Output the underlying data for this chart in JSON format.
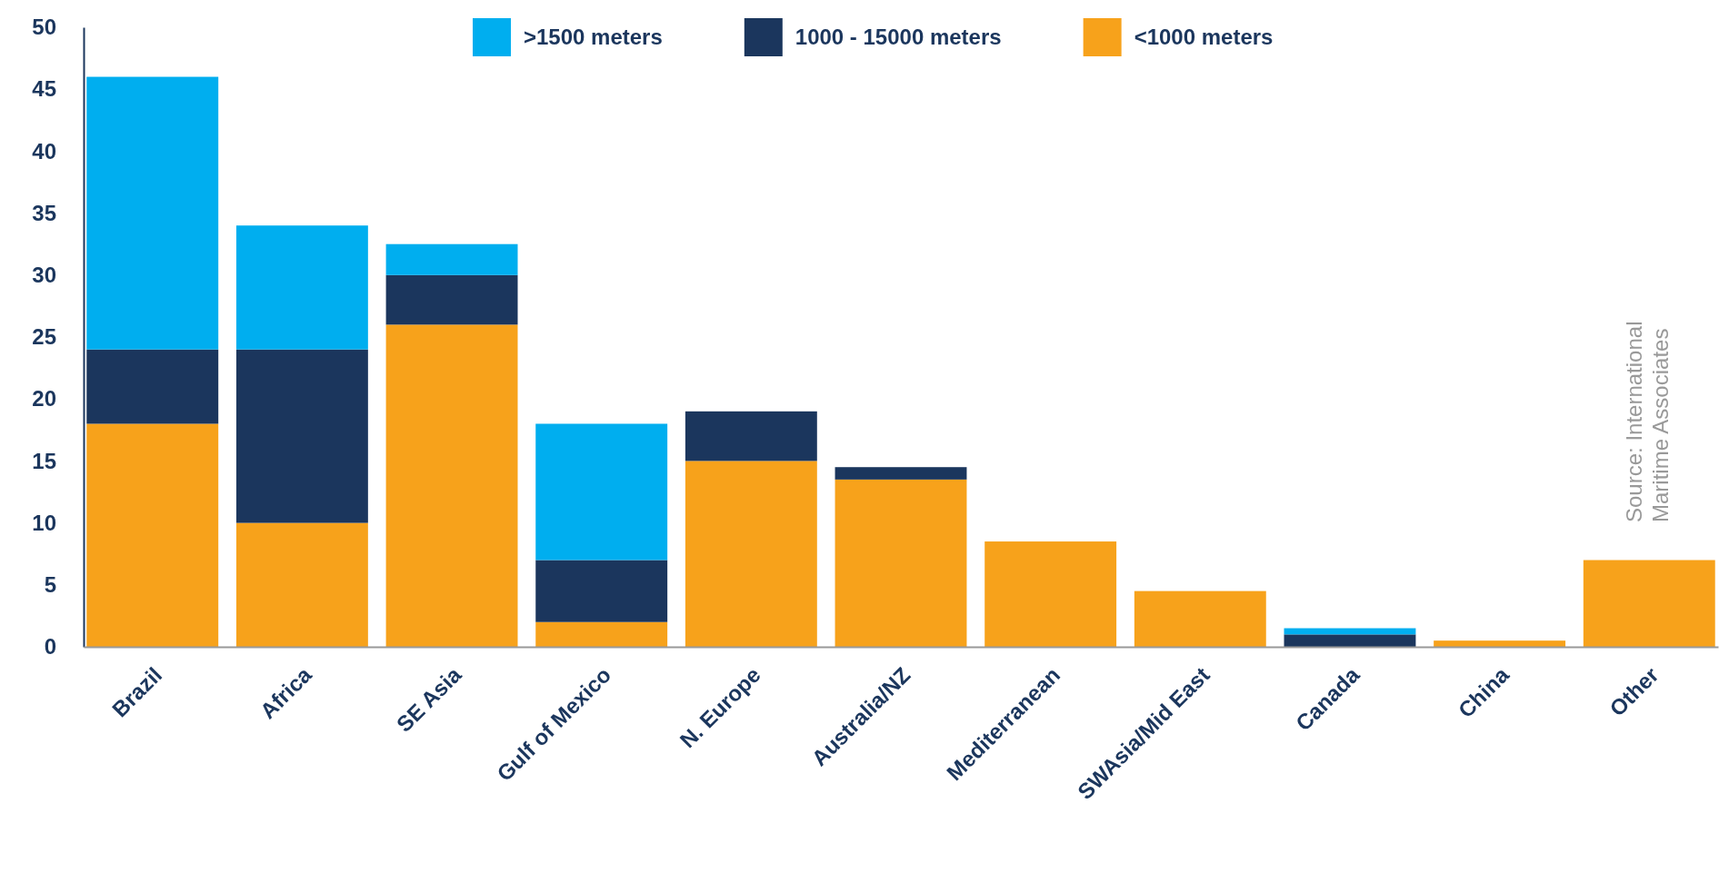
{
  "chart_data": {
    "type": "bar",
    "stacked": true,
    "categories": [
      "Brazil",
      "Africa",
      "SE Asia",
      "Gulf of Mexico",
      "N. Europe",
      "Australia/NZ",
      "Mediterranean",
      "SWAsia/Mid East",
      "Canada",
      "China",
      "Other"
    ],
    "series": [
      {
        "name": "<1000 meters",
        "color": "#f7a21b",
        "values": [
          18,
          10,
          26,
          2,
          15,
          13.5,
          8.5,
          4.5,
          0,
          0.5,
          7
        ]
      },
      {
        "name": "1000 - 15000 meters",
        "color": "#1b365d",
        "values": [
          6,
          14,
          4,
          5,
          4,
          1,
          0,
          0,
          1,
          0,
          0
        ]
      },
      {
        "name": ">1500 meters",
        "color": "#00aeef",
        "values": [
          22,
          10,
          2.5,
          11,
          0,
          0,
          0,
          0,
          0.5,
          0,
          0
        ]
      }
    ],
    "ylim": [
      0,
      50
    ],
    "yticks": [
      0,
      5,
      10,
      15,
      20,
      25,
      30,
      35,
      40,
      45,
      50
    ],
    "legend": "top",
    "grid": false,
    "annotations": [
      "Source: International Maritime Associates"
    ]
  }
}
